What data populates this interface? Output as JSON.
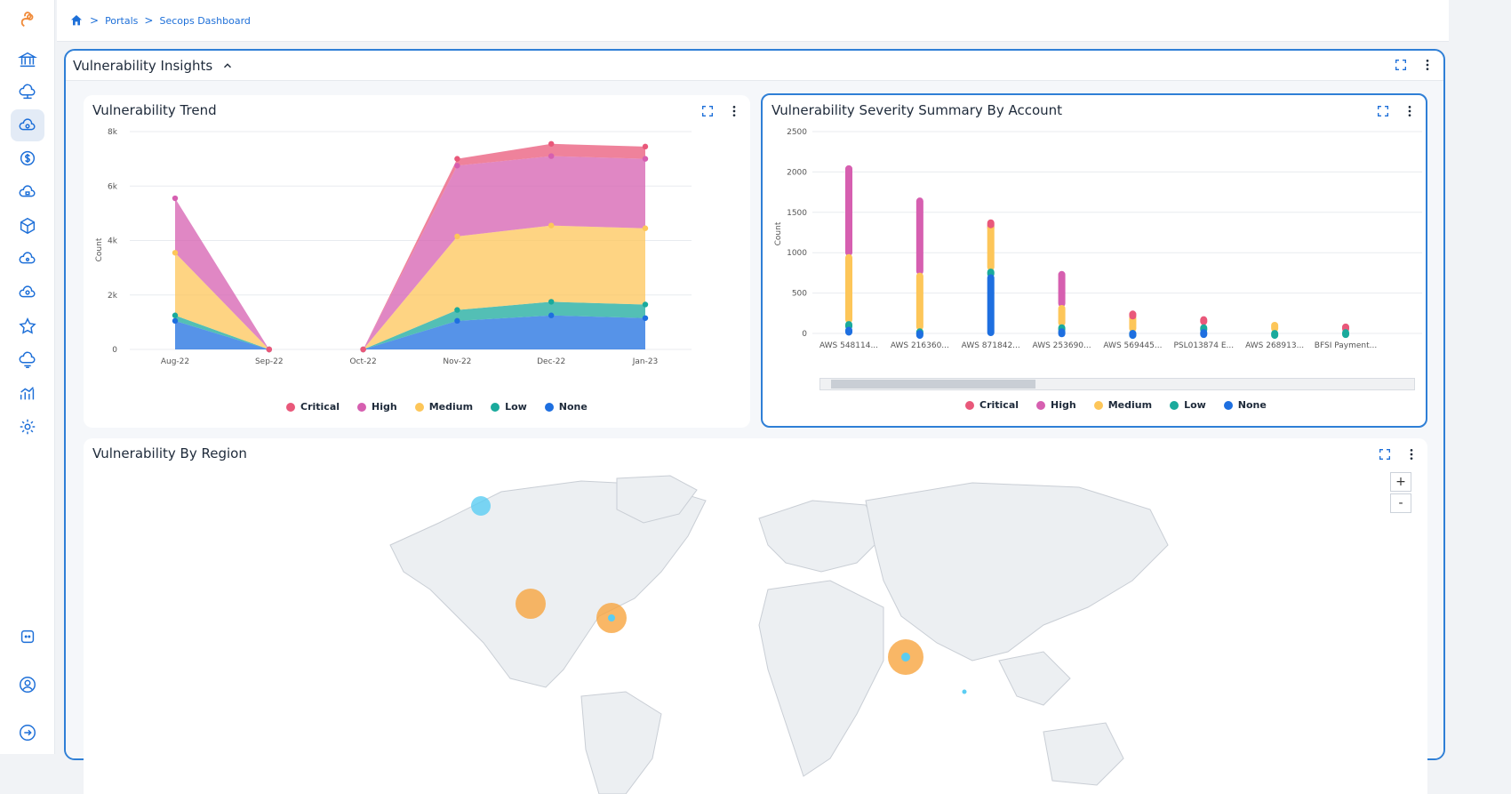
{
  "breadcrumb": {
    "items": [
      "Portals",
      "Secops Dashboard"
    ]
  },
  "section": {
    "title": "Vulnerability Insights"
  },
  "colors": {
    "critical": "#e9587a",
    "high": "#d65fb0",
    "medium": "#fdc659",
    "low": "#1aaa9c",
    "none": "#1e6fe0",
    "accent": "#2f7fd6"
  },
  "legend": [
    "Critical",
    "High",
    "Medium",
    "Low",
    "None"
  ],
  "trend": {
    "title": "Vulnerability Trend",
    "chart_data": {
      "type": "area",
      "categories": [
        "Aug-22",
        "Sep-22",
        "Oct-22",
        "Nov-22",
        "Dec-22",
        "Jan-23"
      ],
      "ylabel": "Count",
      "yticks": [
        "0",
        "2k",
        "4k",
        "6k",
        "8k"
      ],
      "ylim": [
        0,
        8000
      ],
      "series": [
        {
          "name": "None",
          "values": [
            1050,
            0,
            0,
            1050,
            1250,
            1150
          ]
        },
        {
          "name": "Low",
          "values": [
            200,
            0,
            0,
            400,
            500,
            500
          ]
        },
        {
          "name": "Medium",
          "values": [
            2300,
            0,
            0,
            2700,
            2800,
            2800
          ]
        },
        {
          "name": "High",
          "values": [
            2000,
            0,
            0,
            2600,
            2550,
            2550
          ]
        },
        {
          "name": "Critical",
          "values": [
            0,
            0,
            0,
            250,
            450,
            450
          ]
        }
      ]
    }
  },
  "severity": {
    "title": "Vulnerability Severity Summary By Account",
    "chart_data": {
      "type": "scatter",
      "categories": [
        "AWS 548114...",
        "AWS 216360...",
        "AWS 871842...",
        "AWS 253690...",
        "AWS 569445...",
        "PSL013874 E...",
        "AWS 268913...",
        "BFSI Payment..."
      ],
      "ylabel": "Count",
      "yticks": [
        "0",
        "500",
        "1000",
        "1500",
        "2000",
        "2500"
      ],
      "ylim": [
        0,
        2500
      ],
      "series": [
        {
          "name": "Critical",
          "values": [
            0,
            0,
            1380,
            0,
            250,
            180,
            0,
            90
          ]
        },
        {
          "name": "High",
          "values": [
            2050,
            1650,
            1340,
            740,
            0,
            0,
            0,
            0
          ]
        },
        {
          "name": "Medium",
          "values": [
            950,
            720,
            1320,
            320,
            200,
            0,
            110,
            0
          ]
        },
        {
          "name": "Low",
          "values": [
            120,
            30,
            770,
            80,
            10,
            80,
            10,
            20
          ]
        },
        {
          "name": "None",
          "values": [
            50,
            10,
            700,
            30,
            10,
            20,
            0,
            0
          ]
        }
      ]
    }
  },
  "region": {
    "title": "Vulnerability By Region",
    "zoom_in": "+",
    "zoom_out": "-"
  }
}
